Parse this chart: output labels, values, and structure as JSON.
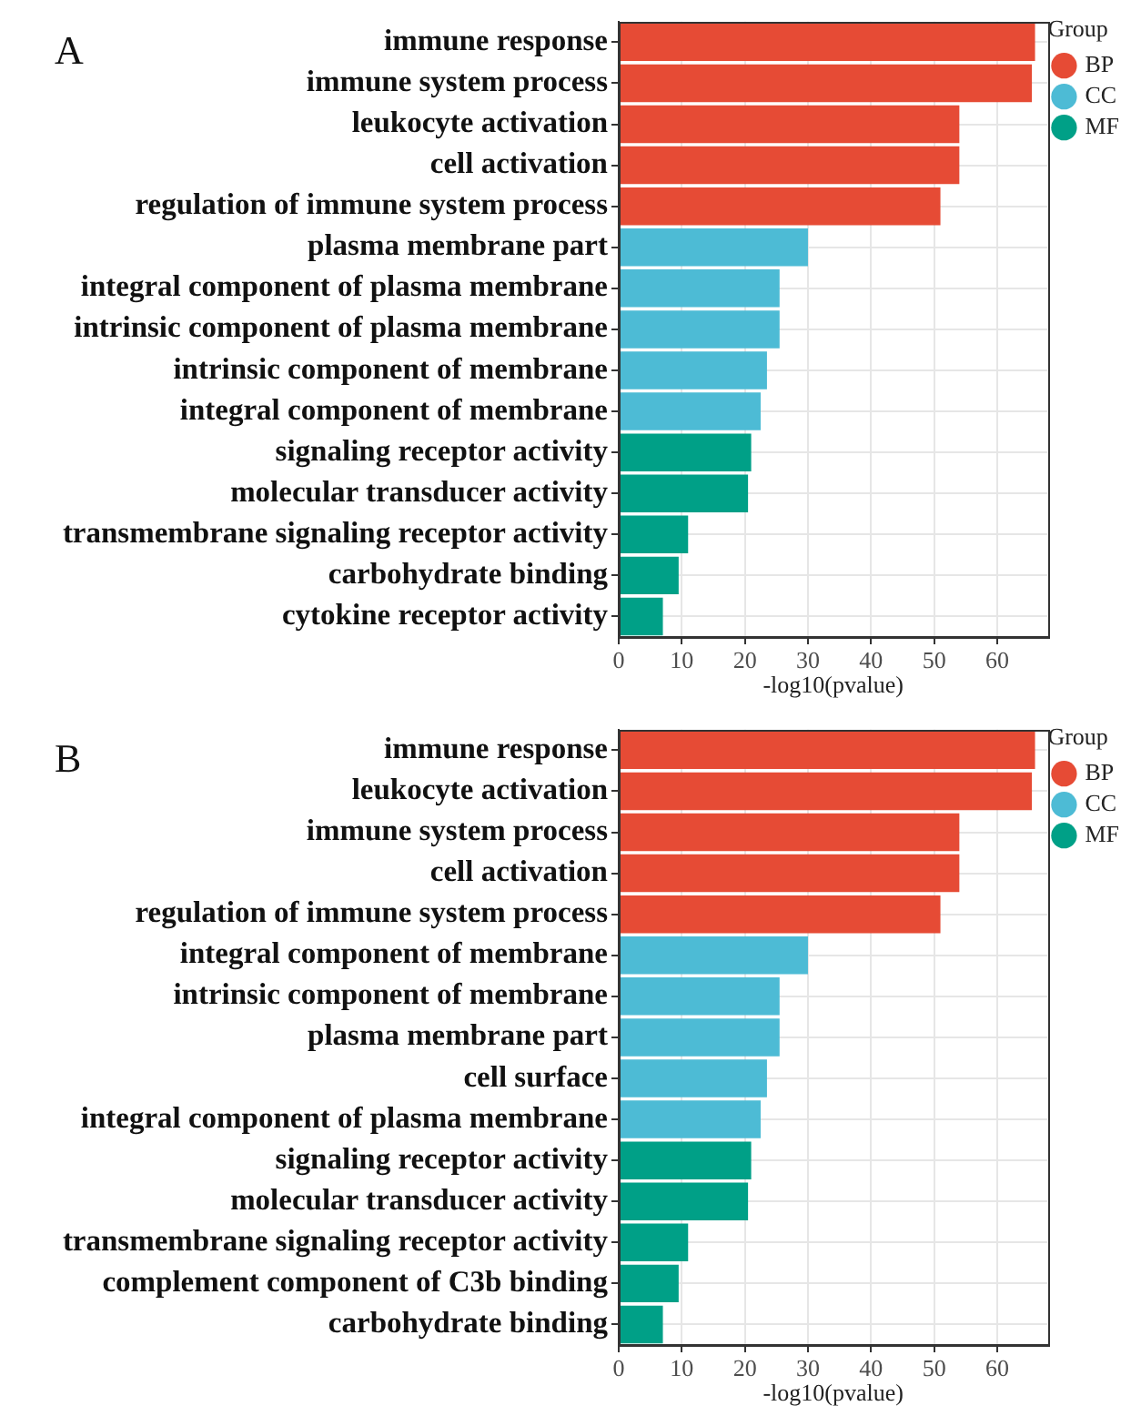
{
  "chart_data": [
    {
      "type": "bar",
      "orientation": "horizontal",
      "stacked": true,
      "title": "A",
      "xlabel": "-log10(pvalue)",
      "legend_title": "Group",
      "legend": "top right",
      "grid": true,
      "xlim": [
        0,
        68
      ],
      "xticks": [
        0,
        10,
        20,
        30,
        40,
        50,
        60
      ],
      "categories": [
        "immune response",
        "immune system process",
        "leukocyte activation",
        "cell activation",
        "regulation of immune system process",
        "plasma membrane part",
        "integral component of plasma membrane",
        "intrinsic component of plasma membrane",
        "intrinsic component of membrane",
        "integral component of membrane",
        "signaling receptor activity",
        "molecular transducer activity",
        "transmembrane signaling receptor activity",
        "carbohydrate binding",
        "cytokine receptor activity"
      ],
      "series": [
        {
          "name": "BP",
          "color": "#e64b35",
          "values": [
            66,
            65.5,
            54,
            54,
            51,
            null,
            null,
            null,
            null,
            null,
            null,
            null,
            null,
            null,
            null
          ]
        },
        {
          "name": "CC",
          "color": "#4dbbd5",
          "values": [
            null,
            null,
            null,
            null,
            null,
            30,
            25.5,
            25.5,
            23.5,
            22.5,
            null,
            null,
            null,
            null,
            null
          ]
        },
        {
          "name": "MF",
          "color": "#00a087",
          "values": [
            null,
            null,
            null,
            null,
            null,
            null,
            null,
            null,
            null,
            null,
            21,
            20.5,
            11,
            9.5,
            7
          ]
        }
      ]
    },
    {
      "type": "bar",
      "orientation": "horizontal",
      "stacked": true,
      "title": "B",
      "xlabel": "-log10(pvalue)",
      "legend_title": "Group",
      "legend": "top right",
      "grid": true,
      "xlim": [
        0,
        68
      ],
      "xticks": [
        0,
        10,
        20,
        30,
        40,
        50,
        60
      ],
      "categories": [
        "immune response",
        "leukocyte activation",
        "immune system process",
        "cell activation",
        "regulation of immune system process",
        "integral component of membrane",
        "intrinsic component of membrane",
        "plasma membrane part",
        "cell surface",
        "integral component of plasma membrane",
        "signaling receptor activity",
        "molecular transducer activity",
        "transmembrane signaling receptor activity",
        "complement component of C3b binding",
        "carbohydrate binding"
      ],
      "series": [
        {
          "name": "BP",
          "color": "#e64b35",
          "values": [
            66,
            65.5,
            54,
            54,
            51,
            null,
            null,
            null,
            null,
            null,
            null,
            null,
            null,
            null,
            null
          ]
        },
        {
          "name": "CC",
          "color": "#4dbbd5",
          "values": [
            null,
            null,
            null,
            null,
            null,
            30,
            25.5,
            25.5,
            23.5,
            22.5,
            null,
            null,
            null,
            null,
            null
          ]
        },
        {
          "name": "MF",
          "color": "#00a087",
          "values": [
            null,
            null,
            null,
            null,
            null,
            null,
            null,
            null,
            null,
            null,
            21,
            20.5,
            11,
            9.5,
            7
          ]
        }
      ]
    }
  ]
}
